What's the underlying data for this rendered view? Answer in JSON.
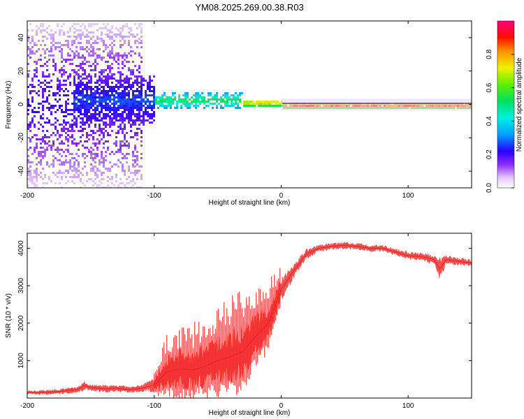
{
  "title": "YM08.2025.269.00.38.R03",
  "colors": {
    "snr_line": "#f03030",
    "frame": "#000000"
  },
  "chart_data": [
    {
      "type": "heatmap",
      "xlabel": "Height of straight line (km)",
      "ylabel": "Frequency (Hz)",
      "xlim": [
        -200,
        150
      ],
      "ylim": [
        -50,
        50
      ],
      "x_ticks": [
        -200,
        -100,
        0,
        100
      ],
      "x_tick_labels": [
        "-200",
        "-100",
        "0",
        "100"
      ],
      "y_ticks": [
        -40,
        -20,
        0,
        20,
        40
      ],
      "y_tick_labels": [
        "-40",
        "-20",
        "0",
        "20",
        "40"
      ],
      "colorbar": {
        "label": "Normalized spectral amplitude",
        "range": [
          0,
          1
        ],
        "ticks": [
          0.0,
          0.2,
          0.4,
          0.6,
          0.8
        ],
        "tick_labels": [
          "0.0",
          "0.2",
          "0.4",
          "0.6",
          "0.8"
        ]
      },
      "regions": [
        {
          "x": [
            -200,
            -110
          ],
          "center_hz": 0,
          "spread_hz": 50,
          "amplitude": [
            0.05,
            0.25
          ],
          "description": "broadband scatter"
        },
        {
          "x": [
            -165,
            -100
          ],
          "center_hz": 3,
          "spread_hz": 15,
          "amplitude": [
            0.15,
            0.3
          ]
        },
        {
          "x": [
            -100,
            -30
          ],
          "center_hz": 3,
          "spread_hz": 5,
          "amplitude": [
            0.3,
            0.6
          ]
        },
        {
          "x": [
            -30,
            0
          ],
          "center_hz": 1.5,
          "spread_hz": 2,
          "amplitude": [
            0.5,
            0.9
          ]
        },
        {
          "x": [
            0,
            150
          ],
          "center_hz": 0,
          "spread_hz": 1.5,
          "amplitude": [
            0.6,
            0.95
          ]
        }
      ]
    },
    {
      "type": "line",
      "xlabel": "Height of straight line (km)",
      "ylabel": "SNR (10 * v/v)",
      "xlim": [
        -200,
        150
      ],
      "ylim": [
        0,
        4400
      ],
      "x_ticks": [
        -200,
        -100,
        0,
        100
      ],
      "x_tick_labels": [
        "-200",
        "-100",
        "0",
        "100"
      ],
      "y_ticks": [
        1000,
        2000,
        3000,
        4000
      ],
      "y_tick_labels": [
        "1000",
        "2000",
        "3000",
        "4000"
      ],
      "series": [
        {
          "name": "SNR",
          "x": [
            -200,
            -190,
            -180,
            -170,
            -160,
            -155,
            -150,
            -140,
            -130,
            -120,
            -110,
            -100,
            -90,
            -80,
            -70,
            -60,
            -50,
            -40,
            -30,
            -20,
            -10,
            0,
            10,
            20,
            30,
            40,
            50,
            60,
            70,
            80,
            90,
            100,
            110,
            120,
            125,
            130,
            140,
            150
          ],
          "values": [
            150,
            150,
            160,
            190,
            230,
            330,
            280,
            250,
            260,
            230,
            260,
            350,
            700,
            780,
            750,
            850,
            1000,
            1100,
            1250,
            1650,
            2000,
            2900,
            3400,
            3850,
            4000,
            4050,
            4080,
            4050,
            4000,
            4000,
            3900,
            3800,
            3780,
            3700,
            3450,
            3700,
            3650,
            3600
          ],
          "envelope": [
            50,
            70,
            80,
            90,
            110,
            150,
            120,
            110,
            110,
            100,
            110,
            200,
            500,
            600,
            600,
            650,
            700,
            800,
            800,
            700,
            550,
            350,
            250,
            150,
            110,
            100,
            100,
            100,
            100,
            100,
            110,
            120,
            120,
            130,
            350,
            130,
            120,
            110
          ]
        }
      ]
    }
  ]
}
